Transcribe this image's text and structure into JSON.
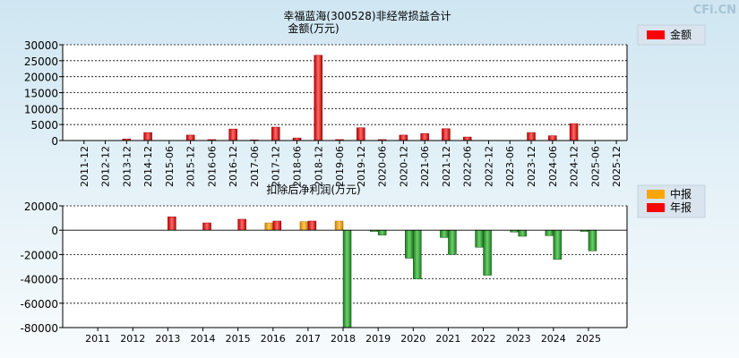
{
  "watermark": "CFi.CN",
  "charts": [
    {
      "type": "bar",
      "title": "幸福蓝海(300528)非经常损益合计",
      "subtitle": "金额(万元)",
      "legend": [
        {
          "name": "金额",
          "color": "#ff0000"
        }
      ],
      "ylim": [
        0,
        30000
      ],
      "yticks": [
        0,
        5000,
        10000,
        15000,
        20000,
        25000,
        30000
      ],
      "categories": [
        "2011-12",
        "2012-12",
        "2013-12",
        "2014-12",
        "2015-06",
        "2015-12",
        "2016-06",
        "2016-12",
        "2017-06",
        "2017-12",
        "2018-06",
        "2018-12",
        "2019-06",
        "2019-12",
        "2020-06",
        "2020-12",
        "2021-06",
        "2021-12",
        "2022-06",
        "2022-12",
        "2023-06",
        "2023-12",
        "2024-06",
        "2024-12",
        "2025-06",
        "2025-12"
      ],
      "values": [
        0,
        0,
        500,
        2500,
        0,
        1700,
        300,
        3600,
        200,
        4200,
        800,
        26700,
        300,
        4000,
        300,
        1700,
        2200,
        3700,
        1100,
        0,
        0,
        2500,
        1500,
        5300,
        0,
        0
      ]
    },
    {
      "type": "bar",
      "title": "扣除后净利润(万元)",
      "legend": [
        {
          "name": "中报",
          "color": "#ffa500"
        },
        {
          "name": "年报",
          "color": "#ff0000"
        }
      ],
      "ylim": [
        -80000,
        20000
      ],
      "yticks": [
        -80000,
        -60000,
        -40000,
        -20000,
        0,
        20000
      ],
      "categories": [
        "2011",
        "2012",
        "2013",
        "2014",
        "2015",
        "2016",
        "2017",
        "2018",
        "2019",
        "2020",
        "2021",
        "2022",
        "2023",
        "2024",
        "2025"
      ],
      "series": [
        {
          "name": "中报",
          "values": [
            null,
            null,
            null,
            null,
            null,
            6000,
            7000,
            7500,
            -1000,
            -23000,
            -6000,
            -14000,
            -1500,
            -4500,
            -1000
          ]
        },
        {
          "name": "年报",
          "values": [
            null,
            null,
            11000,
            6000,
            9000,
            7500,
            7500,
            -80000,
            -4000,
            -40000,
            -20000,
            -37000,
            -5000,
            -24000,
            -17000
          ]
        }
      ]
    }
  ]
}
